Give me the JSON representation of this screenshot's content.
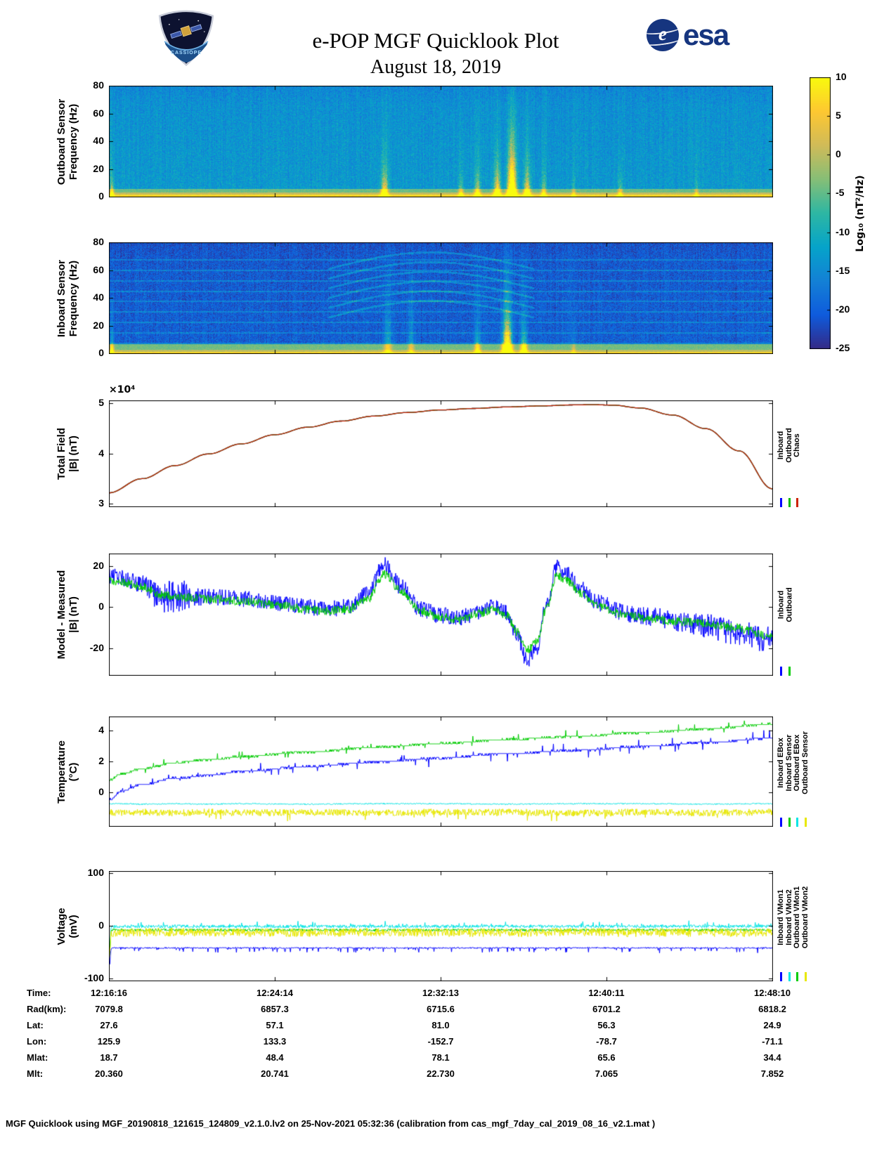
{
  "header": {
    "title": "e-POP MGF Quicklook Plot",
    "subtitle": "August 18, 2019",
    "esa_text": "esa",
    "esa_globe_letter": "e",
    "patch_text": "CASSIOPE"
  },
  "colorbar": {
    "label": "Log₁₀ (nT²/Hz)",
    "ticks": [
      10,
      5,
      0,
      -5,
      -10,
      -15,
      -20,
      -25
    ],
    "min": -25,
    "max": 10,
    "colormap": [
      "#352a87",
      "#0f5cdd",
      "#1481d6",
      "#06a4ca",
      "#2eb7a4",
      "#87bf77",
      "#d1bb59",
      "#fec832",
      "#f9fb0e"
    ]
  },
  "chart_data": {
    "x_ticklabels": [
      "12:16:16",
      "12:24:14",
      "12:32:13",
      "12:40:11",
      "12:48:10"
    ],
    "panels": [
      {
        "id": "outboard-spectrogram",
        "type": "heatmap",
        "ylabel": "Outboard Sensor\nFrequency (Hz)",
        "ylim": [
          0,
          80
        ],
        "yticks": [
          0,
          20,
          40,
          60,
          80
        ],
        "background_level": -14.5,
        "noise": 3.2,
        "bottom_brighten": 1.5,
        "top_darken": {
          "f0": 66,
          "k": 0.08
        },
        "band": {
          "levels": [
            [
              1.8,
              7
            ],
            [
              3.5,
              0.5
            ],
            [
              6,
              -4.5
            ]
          ]
        },
        "bursts": [
          {
            "x": 0.004,
            "w": 0.002,
            "amp": 20,
            "fs": 7
          },
          {
            "x": 0.415,
            "w": 0.0035,
            "amp": 26,
            "fs": 10
          },
          {
            "x": 0.53,
            "w": 0.0025,
            "amp": 14,
            "fs": 7
          },
          {
            "x": 0.555,
            "w": 0.003,
            "amp": 18,
            "fs": 9
          },
          {
            "x": 0.585,
            "w": 0.0035,
            "amp": 26,
            "fs": 12
          },
          {
            "x": 0.607,
            "w": 0.0045,
            "amp": 40,
            "fs": 22
          },
          {
            "x": 0.63,
            "w": 0.0035,
            "amp": 24,
            "fs": 11
          },
          {
            "x": 0.655,
            "w": 0.0025,
            "amp": 16,
            "fs": 8
          },
          {
            "x": 0.7,
            "w": 0.002,
            "amp": 10,
            "fs": 6
          },
          {
            "x": 0.77,
            "w": 0.0025,
            "amp": 13,
            "fs": 7
          },
          {
            "x": 0.885,
            "w": 0.002,
            "amp": 10,
            "fs": 6
          }
        ]
      },
      {
        "id": "inboard-spectrogram",
        "type": "heatmap",
        "ylabel": "Inboard Sensor\nFrequency (Hz)",
        "ylim": [
          0,
          80
        ],
        "yticks": [
          0,
          20,
          40,
          60,
          80
        ],
        "background_level": -21,
        "noise": 3,
        "bottom_brighten": 1.0,
        "top_darken": {
          "f0": 70,
          "k": 0.05
        },
        "speckle": {
          "p": 0.02,
          "amp": 7
        },
        "hlines": {
          "freqs": [
            7.5,
            15,
            22.5,
            30,
            37.5,
            45,
            52.5,
            60,
            67.5
          ],
          "boost": 4.5
        },
        "arcs": {
          "x0": 0.33,
          "x1": 0.64,
          "bases": [
            26,
            33,
            40,
            47,
            54,
            61
          ],
          "rise": 12,
          "boost": 5.5
        },
        "band": {
          "levels": [
            [
              1.5,
              7
            ],
            [
              3,
              0
            ],
            [
              7,
              -4
            ]
          ]
        },
        "bursts": [
          {
            "x": 0.004,
            "w": 0.002,
            "amp": 18,
            "fs": 7
          },
          {
            "x": 0.42,
            "w": 0.004,
            "amp": 10,
            "fs": 25
          },
          {
            "x": 0.455,
            "w": 0.003,
            "amp": 8,
            "fs": 25
          },
          {
            "x": 0.555,
            "w": 0.003,
            "amp": 16,
            "fs": 10
          },
          {
            "x": 0.6,
            "w": 0.0045,
            "amp": 45,
            "fs": 16
          },
          {
            "x": 0.625,
            "w": 0.0035,
            "amp": 22,
            "fs": 10
          },
          {
            "x": 0.7,
            "w": 0.002,
            "amp": 8,
            "fs": 6
          }
        ]
      },
      {
        "id": "total-field",
        "type": "line",
        "ylabel": "Total Field\n|B| (nT)",
        "exp_label": "×10⁴",
        "unit_scale": "1e4 nT",
        "series_overlap": true,
        "ylim": [
          2.95,
          5.05
        ],
        "yticks": [
          3,
          4,
          5
        ],
        "x": [
          0,
          0.05,
          0.1,
          0.15,
          0.2,
          0.25,
          0.3,
          0.35,
          0.4,
          0.45,
          0.5,
          0.55,
          0.6,
          0.65,
          0.7,
          0.73,
          0.76,
          0.8,
          0.85,
          0.9,
          0.95,
          1.0
        ],
        "series": [
          {
            "name": "Inboard",
            "color": "#0000ff",
            "steps": 500,
            "lw": 1.3,
            "y": [
              3.22,
              3.5,
              3.76,
              3.99,
              4.19,
              4.37,
              4.52,
              4.64,
              4.74,
              4.81,
              4.86,
              4.89,
              4.92,
              4.94,
              4.96,
              4.965,
              4.955,
              4.9,
              4.76,
              4.49,
              4.05,
              3.3
            ]
          },
          {
            "name": "Outboard",
            "color": "#00bb00",
            "steps": 500,
            "lw": 1.3,
            "y": [
              3.22,
              3.5,
              3.76,
              3.99,
              4.19,
              4.37,
              4.52,
              4.64,
              4.74,
              4.81,
              4.86,
              4.89,
              4.92,
              4.94,
              4.96,
              4.965,
              4.955,
              4.9,
              4.76,
              4.49,
              4.05,
              3.3
            ]
          },
          {
            "name": "Chaos",
            "color": "#cc2200",
            "steps": 500,
            "lw": 1.3,
            "y": [
              3.22,
              3.5,
              3.76,
              3.99,
              4.19,
              4.37,
              4.52,
              4.64,
              4.74,
              4.81,
              4.86,
              4.89,
              4.92,
              4.94,
              4.96,
              4.965,
              4.955,
              4.9,
              4.76,
              4.49,
              4.05,
              3.3
            ]
          }
        ],
        "legend": [
          [
            "Inboard",
            "#0000ff"
          ],
          [
            "Outboard",
            "#00bb00"
          ],
          [
            "Chaos",
            "#cc2200"
          ]
        ]
      },
      {
        "id": "model-measured",
        "type": "line",
        "ylabel": "Model - Measured\n|B| (nT)",
        "ylim": [
          -33,
          26
        ],
        "yticks": [
          -20,
          0,
          20
        ],
        "x": [
          0,
          0.02,
          0.05,
          0.08,
          0.1,
          0.15,
          0.2,
          0.25,
          0.3,
          0.33,
          0.36,
          0.39,
          0.415,
          0.44,
          0.47,
          0.5,
          0.53,
          0.56,
          0.58,
          0.6,
          0.615,
          0.63,
          0.645,
          0.66,
          0.675,
          0.69,
          0.71,
          0.74,
          0.78,
          0.82,
          0.86,
          0.9,
          0.94,
          1.0
        ],
        "series": [
          {
            "name": "Inboard",
            "color": "#0000ff",
            "noise": 4,
            "noise_bumps": [
              {
                "x": 0.095,
                "w": 0.02,
                "k": 1.2
              },
              {
                "x": 0.98,
                "w": 0.1,
                "k": 0.6
              }
            ],
            "y": [
              15,
              14,
              11,
              4,
              6,
              5,
              4,
              2,
              0,
              -1,
              0,
              6,
              21,
              10,
              -1,
              -4,
              -5,
              -2,
              0,
              -3,
              -13,
              -26,
              -20,
              2,
              19,
              16,
              9,
              2,
              -3,
              -5,
              -7,
              -9,
              -12,
              -16
            ]
          },
          {
            "name": "Outboard",
            "color": "#00cc00",
            "noise": 2.2,
            "y": [
              13,
              12,
              10,
              6,
              5,
              4,
              3,
              1,
              -1,
              -2,
              -1,
              4,
              16,
              8,
              -2,
              -5,
              -6,
              -3,
              -1,
              -4,
              -12,
              -21,
              -17,
              0,
              15,
              13,
              7,
              0,
              -4,
              -6,
              -7,
              -8,
              -10,
              -14
            ]
          }
        ],
        "legend": [
          [
            "Inboard",
            "#0000ff"
          ],
          [
            "Outboard",
            "#00cc00"
          ]
        ]
      },
      {
        "id": "temperature",
        "type": "line",
        "ylabel": "Temperature\n(°C)",
        "ylim": [
          -2.2,
          4.9
        ],
        "yticks": [
          0,
          2,
          4
        ],
        "x": [
          0,
          0.02,
          0.05,
          0.1,
          0.15,
          0.2,
          0.3,
          0.4,
          0.5,
          0.6,
          0.7,
          0.8,
          0.9,
          1.0
        ],
        "series": [
          {
            "name": "Inboard EBox",
            "color": "#0000ff",
            "noise": 0.06,
            "quant": 0.125,
            "spikes": {
              "p": 0.05,
              "amp": 0.5,
              "sym": true
            },
            "y": [
              -0.5,
              0.1,
              0.5,
              0.9,
              1.1,
              1.35,
              1.65,
              1.95,
              2.2,
              2.5,
              2.7,
              2.95,
              3.2,
              3.5
            ]
          },
          {
            "name": "Inboard Sensor",
            "color": "#00cc00",
            "noise": 0.06,
            "quant": 0.125,
            "spikes": {
              "p": 0.04,
              "amp": 0.4,
              "sym": true
            },
            "y": [
              0.8,
              1.2,
              1.5,
              1.9,
              2.1,
              2.3,
              2.6,
              2.9,
              3.15,
              3.4,
              3.6,
              3.85,
              4.1,
              4.4
            ]
          },
          {
            "name": "Outboard EBox",
            "color": "#00e5e5",
            "noise": 0.04,
            "y": [
              -0.75,
              -0.75,
              -0.78,
              -0.75,
              -0.78,
              -0.75,
              -0.78,
              -0.75,
              -0.75,
              -0.78,
              -0.75,
              -0.75,
              -0.78,
              -0.75
            ]
          },
          {
            "name": "Outboard Sensor",
            "color": "#e8e800",
            "noise": 0.22,
            "spikes": {
              "p": 0.04,
              "amp": -0.5
            },
            "y": [
              -1.3,
              -1.35,
              -1.3,
              -1.35,
              -1.3,
              -1.35,
              -1.3,
              -1.35,
              -1.3,
              -1.3,
              -1.35,
              -1.3,
              -1.35,
              -1.3
            ]
          }
        ],
        "legend": [
          [
            "Inboard EBox",
            "#0000ff"
          ],
          [
            "Inboard Sensor",
            "#00cc00"
          ],
          [
            "Outboard EBox",
            "#00e5e5"
          ],
          [
            "Outboard Sensor",
            "#e8e800"
          ]
        ]
      },
      {
        "id": "voltage",
        "type": "line",
        "ylabel": "Voltage\n(mV)",
        "ylim": [
          -104,
          104
        ],
        "yticks": [
          -100,
          0,
          100
        ],
        "x": [
          0,
          0.004,
          0.01,
          0.1,
          0.2,
          0.3,
          0.4,
          0.5,
          0.6,
          0.7,
          0.8,
          0.9,
          1.0
        ],
        "series": [
          {
            "name": "Inboard VMon1",
            "color": "#0000ff",
            "noise": 1.2,
            "spikes": {
              "p": 0.08,
              "amp": -9
            },
            "y": [
              -75,
              -42,
              -42,
              -42,
              -42,
              -42,
              -42,
              -42,
              -42,
              -42,
              -42,
              -42,
              -42
            ]
          },
          {
            "name": "Inboard VMon2",
            "color": "#00e5e5",
            "noise": 3,
            "spikes": {
              "p": 0.05,
              "amp": 8
            },
            "y": [
              -55,
              -2,
              -1,
              -1,
              -1,
              -1,
              -1,
              -1,
              -1,
              -1,
              -1,
              -1,
              -1
            ]
          },
          {
            "name": "Outboard VMon1",
            "color": "#00cc00",
            "noise": 2.5,
            "y": [
              -60,
              -8,
              -8,
              -8,
              -8,
              -8,
              -8,
              -8,
              -8,
              -8,
              -8,
              -8,
              -8
            ]
          },
          {
            "name": "Outboard VMon2",
            "color": "#e8e800",
            "noise": 8,
            "y": [
              -62,
              -13,
              -13,
              -12,
              -13,
              -13,
              -12,
              -13,
              -13,
              -12,
              -13,
              -13,
              -13
            ]
          }
        ],
        "legend": [
          [
            "Inboard VMon1",
            "#0000ff"
          ],
          [
            "Inboard VMon2",
            "#00e5e5"
          ],
          [
            "Outboard VMon1",
            "#00cc00"
          ],
          [
            "Outboard VMon2",
            "#e8e800"
          ]
        ]
      }
    ]
  },
  "bottom_table": {
    "rows": [
      {
        "label": "Time:",
        "values": [
          "12:16:16",
          "12:24:14",
          "12:32:13",
          "12:40:11",
          "12:48:10"
        ]
      },
      {
        "label": "Rad(km):",
        "values": [
          "7079.8",
          "6857.3",
          "6715.6",
          "6701.2",
          "6818.2"
        ]
      },
      {
        "label": "Lat:",
        "values": [
          "27.6",
          "57.1",
          "81.0",
          "56.3",
          "24.9"
        ]
      },
      {
        "label": "Lon:",
        "values": [
          "125.9",
          "133.3",
          "-152.7",
          "-78.7",
          "-71.1"
        ]
      },
      {
        "label": "Mlat:",
        "values": [
          "18.7",
          "48.4",
          "78.1",
          "65.6",
          "34.4"
        ]
      },
      {
        "label": "Mlt:",
        "values": [
          "20.360",
          "20.741",
          "22.730",
          "7.065",
          "7.852"
        ]
      }
    ]
  },
  "footer": {
    "text": "MGF Quicklook using MGF_20190818_121615_124809_v2.1.0.lv2 on 25-Nov-2021 05:32:36 (calibration from cas_mgf_7day_cal_2019_08_16_v2.1.mat )"
  }
}
